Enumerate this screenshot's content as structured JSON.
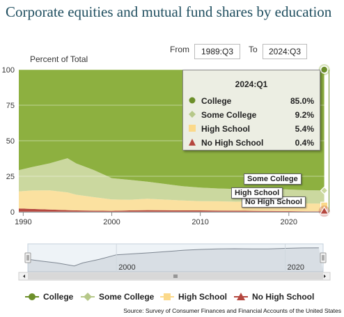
{
  "title": "Corporate equities and mutual fund shares by education",
  "range": {
    "from_label": "From",
    "from_value": "1989:Q3",
    "to_label": "To",
    "to_value": "2024:Q3"
  },
  "chart_data": {
    "type": "area",
    "stacked": true,
    "ylabel": "Percent of Total",
    "ylim": [
      0,
      100
    ],
    "yticks": [
      0,
      25,
      50,
      75,
      100
    ],
    "xticks": [
      1990,
      2000,
      2010,
      2020
    ],
    "x": [
      1989.5,
      1991,
      1993,
      1995,
      1996,
      1998,
      2000,
      2002,
      2004,
      2006,
      2008,
      2010,
      2012,
      2014,
      2016,
      2018,
      2020,
      2022,
      2024
    ],
    "series": [
      {
        "name": "No High School",
        "color": "#b5473f",
        "values": [
          2.3,
          2.0,
          1.6,
          1.2,
          1.0,
          0.8,
          0.7,
          1.0,
          1.2,
          1.1,
          1.0,
          1.0,
          0.9,
          0.8,
          0.7,
          0.6,
          0.5,
          0.4,
          0.4
        ]
      },
      {
        "name": "High School",
        "color": "#fbe1a0",
        "values": [
          12,
          13,
          13.5,
          12.5,
          11,
          9.5,
          8,
          7.5,
          8,
          7.5,
          7,
          6.5,
          6.5,
          6.3,
          6.5,
          6.2,
          5.7,
          5.5,
          5.4
        ]
      },
      {
        "name": "Some College",
        "color": "#cbd89f",
        "values": [
          15,
          16.5,
          19,
          24,
          22,
          19,
          15,
          14,
          12,
          11,
          10,
          9.5,
          9,
          9,
          9.2,
          9.5,
          9.5,
          9.3,
          9.2
        ]
      },
      {
        "name": "College",
        "color": "#8db040",
        "values": [
          70.7,
          68.5,
          65.9,
          62.3,
          66,
          70.7,
          76.3,
          77.5,
          78.8,
          80.4,
          82,
          83,
          83.6,
          83.9,
          83.6,
          83.7,
          84.3,
          84.8,
          85.0
        ]
      }
    ],
    "tooltip": {
      "date": "2024:Q1",
      "rows": [
        {
          "name": "College",
          "value": "85.0%"
        },
        {
          "name": "Some College",
          "value": "9.2%"
        },
        {
          "name": "High School",
          "value": "5.4%"
        },
        {
          "name": "No High School",
          "value": "0.4%"
        }
      ]
    },
    "flags": [
      "Some College",
      "High School",
      "No High School"
    ],
    "navigator_ticks": [
      2000,
      2020
    ],
    "legend": [
      "College",
      "Some College",
      "High School",
      "No High School"
    ]
  },
  "source": "Source: Survey of Consumer Finances and Financial Accounts of the United States"
}
